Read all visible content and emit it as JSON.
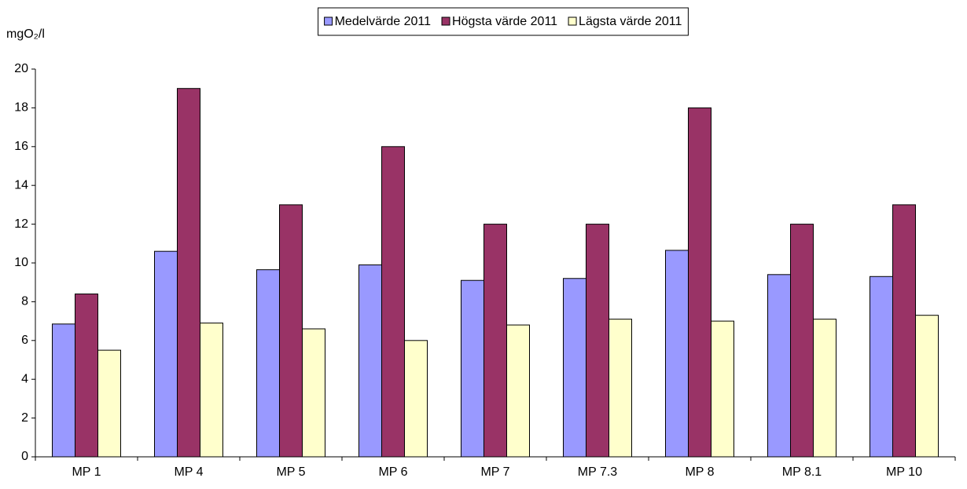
{
  "chart_data": {
    "type": "bar",
    "y_label": "mgO₂/l",
    "categories": [
      "MP 1",
      "MP 4",
      "MP 5",
      "MP 6",
      "MP 7",
      "MP 7.3",
      "MP 8",
      "MP 8.1",
      "MP 10"
    ],
    "series": [
      {
        "name": "Medelvärde 2011",
        "color": "#9999ff",
        "values": [
          6.85,
          10.6,
          9.65,
          9.9,
          9.1,
          9.2,
          10.65,
          9.4,
          9.3
        ]
      },
      {
        "name": "Högsta värde 2011",
        "color": "#993366",
        "values": [
          8.4,
          19,
          13,
          16,
          12,
          12,
          18,
          12,
          13
        ]
      },
      {
        "name": "Lägsta värde 2011",
        "color": "#ffffcc",
        "values": [
          5.5,
          6.9,
          6.6,
          6.0,
          6.8,
          7.1,
          7.0,
          7.1,
          7.3
        ]
      }
    ],
    "ylim": [
      0,
      20
    ],
    "yticks": [
      0,
      2,
      4,
      6,
      8,
      10,
      12,
      14,
      16,
      18,
      20
    ],
    "grid": false,
    "legend": "top"
  }
}
